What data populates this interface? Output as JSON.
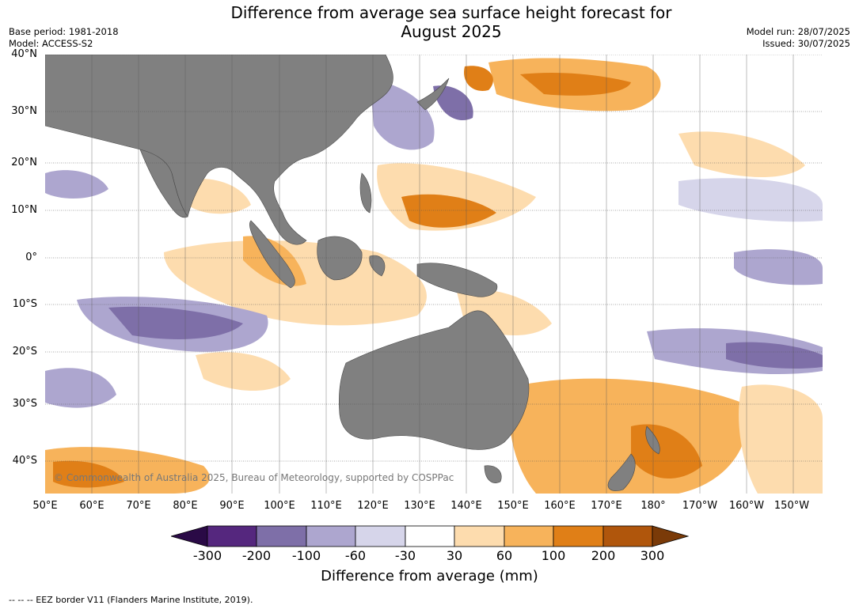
{
  "title_line1": "Difference from average sea surface height forecast for",
  "title_line2": "August 2025",
  "base_period": "Base period: 1981-2018",
  "model": "Model: ACCESS-S2",
  "model_run": "Model run: 28/07/2025",
  "issued": "Issued: 30/07/2025",
  "lat_labels": [
    "40°N",
    "30°N",
    "20°N",
    "10°N",
    "0°",
    "10°S",
    "20°S",
    "30°S",
    "40°S"
  ],
  "lon_labels": [
    "50°E",
    "60°E",
    "70°E",
    "80°E",
    "90°E",
    "100°E",
    "110°E",
    "120°E",
    "130°E",
    "140°E",
    "150°E",
    "160°E",
    "170°E",
    "180°",
    "170°W",
    "160°W",
    "150°W"
  ],
  "copyright": "© Commonwealth of Australia 2025, Bureau of Meteorology, supported by COSPPac",
  "colorbar": {
    "label": "Difference from average (mm)",
    "ticks": [
      "-300",
      "-200",
      "-100",
      "-60",
      "-30",
      "30",
      "60",
      "100",
      "200",
      "300"
    ],
    "colors": [
      "#2a0a46",
      "#55277e",
      "#7e6fa8",
      "#ada6cf",
      "#d6d5ea",
      "#ffffff",
      "#fddcae",
      "#f7b35b",
      "#e07f17",
      "#b0560c",
      "#7a3a08"
    ]
  },
  "land_color": "#808080",
  "footnote": "--  --  -- EEZ border V11 (Flanders Marine Institute, 2019)."
}
